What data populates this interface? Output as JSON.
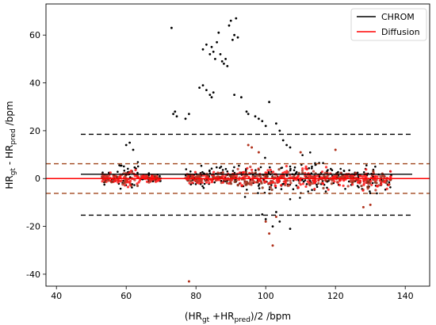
{
  "chart_data": {
    "type": "scatter",
    "xlabel": "(HR_gt +HR_pred)/2 /bpm",
    "ylabel": "HR_gt - HR_pred /bpm",
    "xlim": [
      37,
      147
    ],
    "ylim": [
      -45,
      73
    ],
    "xticks": [
      40,
      60,
      80,
      100,
      120,
      140
    ],
    "yticks": [
      -40,
      -20,
      0,
      20,
      40,
      60
    ],
    "grid": false,
    "legend_position": "top-right",
    "series": [
      {
        "name": "CHROM",
        "color": "#000000",
        "mean": 1.8,
        "upper_loa": 18.5,
        "lower_loa": -15.3,
        "line_x": [
          47,
          142
        ],
        "clusters": [
          {
            "x": [
              53,
              58
            ],
            "y": [
              -4,
              5
            ]
          },
          {
            "x": [
              58,
              64
            ],
            "y": [
              -6,
              16
            ]
          },
          {
            "x": [
              64,
              70
            ],
            "y": [
              -3,
              4
            ]
          },
          {
            "x": [
              77,
              92
            ],
            "y": [
              -5,
              10
            ]
          },
          {
            "x": [
              92,
              118
            ],
            "y": [
              -12,
              14
            ]
          },
          {
            "x": [
              118,
              126
            ],
            "y": [
              -4,
              10
            ]
          },
          {
            "x": [
              126,
              136
            ],
            "y": [
              -12,
              6
            ]
          }
        ],
        "outliers": [
          {
            "x": 73,
            "y": 63
          },
          {
            "x": 73.5,
            "y": 27
          },
          {
            "x": 74,
            "y": 28
          },
          {
            "x": 74.5,
            "y": 26
          },
          {
            "x": 77,
            "y": 25
          },
          {
            "x": 78,
            "y": 27
          },
          {
            "x": 82,
            "y": 54
          },
          {
            "x": 83,
            "y": 56
          },
          {
            "x": 84,
            "y": 52
          },
          {
            "x": 84.5,
            "y": 55
          },
          {
            "x": 85,
            "y": 53
          },
          {
            "x": 85.5,
            "y": 50
          },
          {
            "x": 86,
            "y": 57
          },
          {
            "x": 86.5,
            "y": 61
          },
          {
            "x": 87,
            "y": 52
          },
          {
            "x": 87.5,
            "y": 49
          },
          {
            "x": 88,
            "y": 48
          },
          {
            "x": 88.5,
            "y": 50
          },
          {
            "x": 89,
            "y": 47
          },
          {
            "x": 89.5,
            "y": 64
          },
          {
            "x": 90,
            "y": 66
          },
          {
            "x": 90.5,
            "y": 58
          },
          {
            "x": 91,
            "y": 60
          },
          {
            "x": 91.5,
            "y": 67
          },
          {
            "x": 92,
            "y": 59
          },
          {
            "x": 81,
            "y": 38
          },
          {
            "x": 82,
            "y": 39
          },
          {
            "x": 83,
            "y": 37
          },
          {
            "x": 84,
            "y": 35
          },
          {
            "x": 85,
            "y": 36
          },
          {
            "x": 84.5,
            "y": 34
          },
          {
            "x": 91,
            "y": 35
          },
          {
            "x": 93,
            "y": 34
          },
          {
            "x": 94.5,
            "y": 28
          },
          {
            "x": 95,
            "y": 27
          },
          {
            "x": 97,
            "y": 26
          },
          {
            "x": 98,
            "y": 25
          },
          {
            "x": 99,
            "y": 24
          },
          {
            "x": 100,
            "y": 22
          },
          {
            "x": 101,
            "y": 32
          },
          {
            "x": 103,
            "y": 23
          },
          {
            "x": 104,
            "y": 20
          },
          {
            "x": 105,
            "y": 16
          },
          {
            "x": 106,
            "y": 14
          },
          {
            "x": 107,
            "y": 13
          },
          {
            "x": 100,
            "y": -17
          },
          {
            "x": 102,
            "y": -20
          },
          {
            "x": 104,
            "y": -18
          },
          {
            "x": 107,
            "y": -21
          },
          {
            "x": 99,
            "y": -15
          },
          {
            "x": 103,
            "y": -14
          },
          {
            "x": 61,
            "y": 15
          },
          {
            "x": 60,
            "y": 14
          },
          {
            "x": 62,
            "y": 12
          }
        ]
      },
      {
        "name": "Diffusion",
        "color": "#ff0000",
        "mean": 0,
        "upper_loa": 6.2,
        "lower_loa": -6.2,
        "line_x": [
          37,
          147
        ],
        "clusters": [
          {
            "x": [
              53,
              58
            ],
            "y": [
              -4,
              4
            ]
          },
          {
            "x": [
              58,
              64
            ],
            "y": [
              -8,
              7
            ]
          },
          {
            "x": [
              64,
              70
            ],
            "y": [
              -3,
              3
            ]
          },
          {
            "x": [
              77,
              92
            ],
            "y": [
              -5,
              5
            ]
          },
          {
            "x": [
              92,
              118
            ],
            "y": [
              -8,
              9
            ]
          },
          {
            "x": [
              118,
              126
            ],
            "y": [
              -4,
              6
            ]
          },
          {
            "x": [
              126,
              136
            ],
            "y": [
              -10,
              5
            ]
          }
        ],
        "outliers": [
          {
            "x": 78,
            "y": -43
          },
          {
            "x": 95,
            "y": 14
          },
          {
            "x": 96,
            "y": 13
          },
          {
            "x": 101,
            "y": -23
          },
          {
            "x": 102,
            "y": -28
          },
          {
            "x": 100,
            "y": -18
          },
          {
            "x": 103,
            "y": -16
          },
          {
            "x": 98,
            "y": 11
          },
          {
            "x": 110,
            "y": 11
          },
          {
            "x": 120,
            "y": 12
          },
          {
            "x": 130,
            "y": -11
          },
          {
            "x": 128,
            "y": -12
          }
        ]
      }
    ]
  }
}
